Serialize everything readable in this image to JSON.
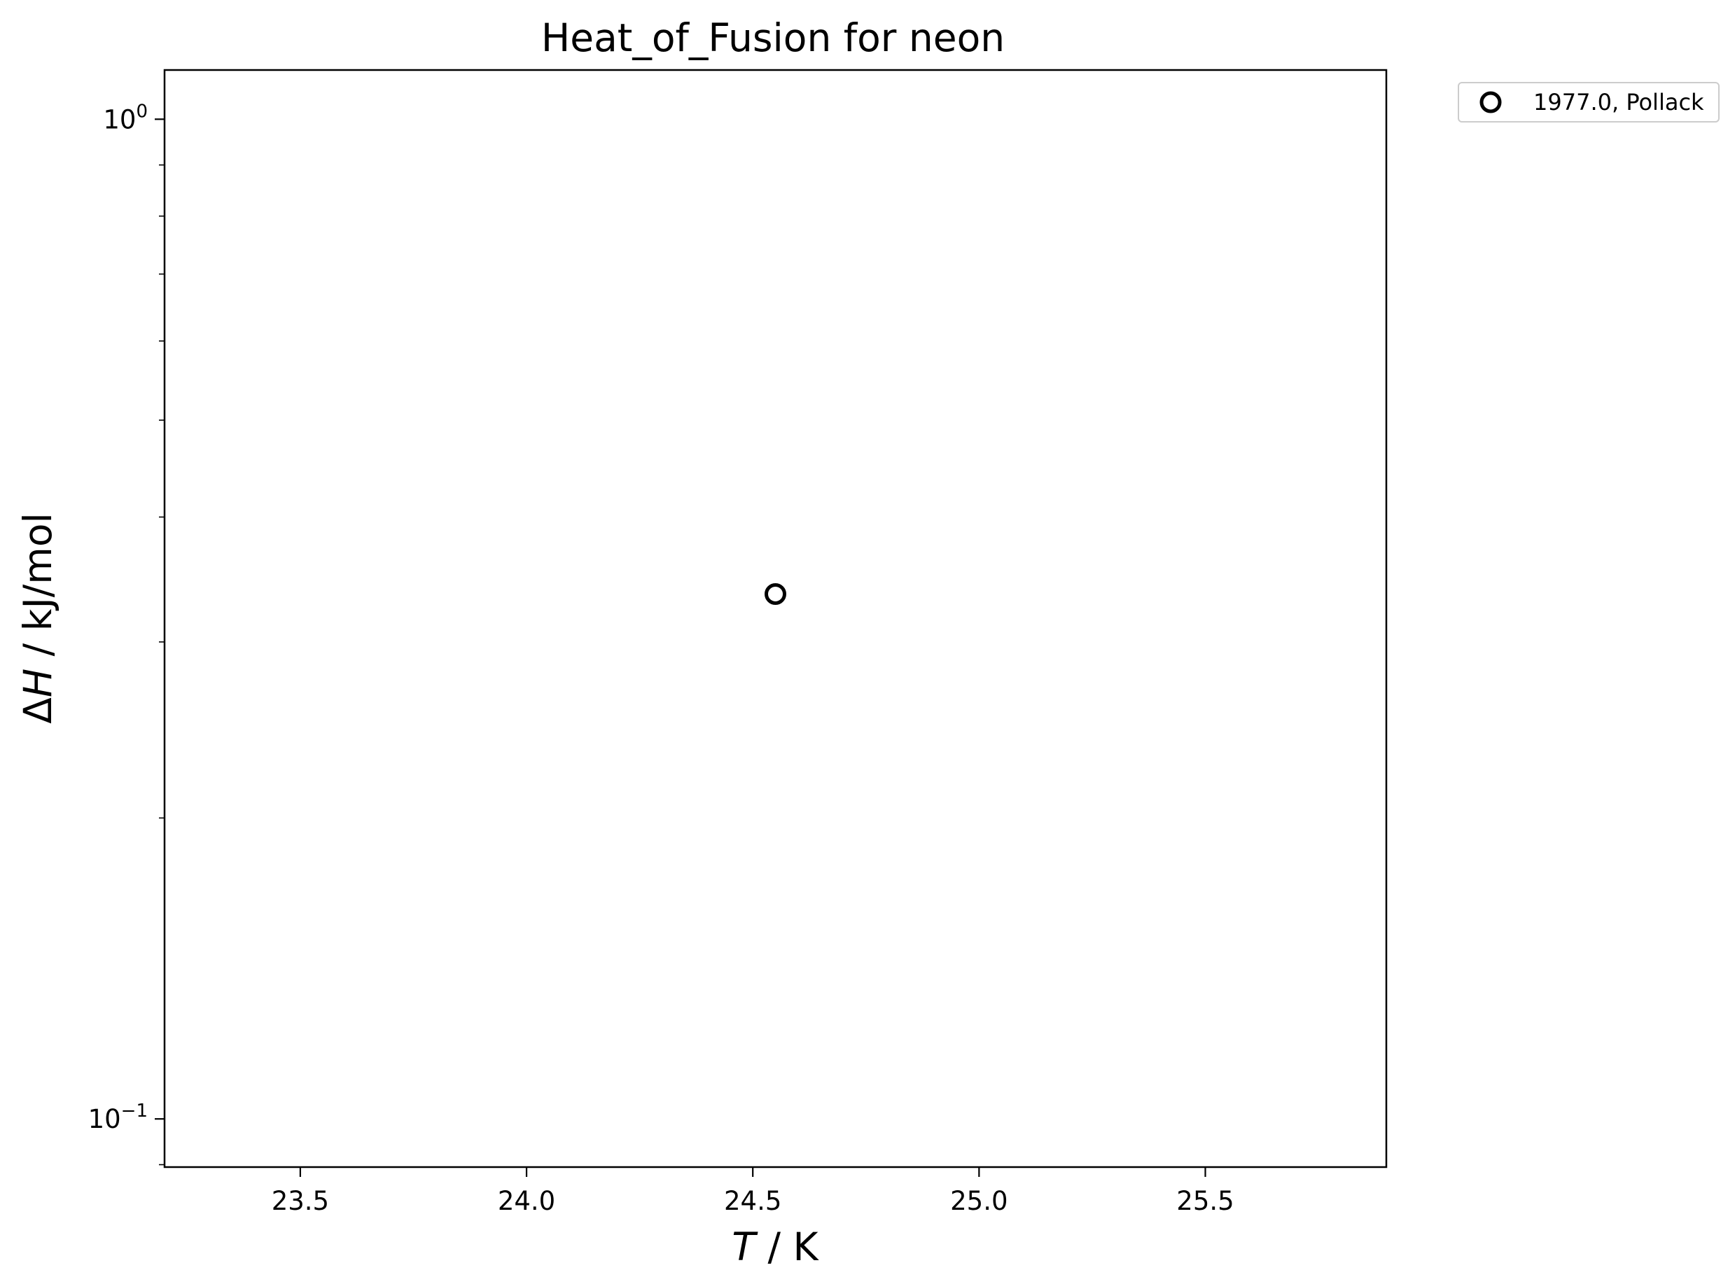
{
  "chart_data": {
    "type": "scatter",
    "title": "Heat_of_Fusion for neon",
    "xlabel": {
      "italic": "T",
      "rest": " / K"
    },
    "ylabel": {
      "prefix": "Δ",
      "italic": "H",
      "rest": " / kJ/mol"
    },
    "x_scale": "linear",
    "y_scale": "log",
    "xlim": [
      23.2,
      25.9
    ],
    "ylim": [
      0.0895,
      1.12
    ],
    "x_ticks": [
      23.5,
      24.0,
      24.5,
      25.0,
      25.5
    ],
    "x_tick_labels": [
      "23.5",
      "24.0",
      "24.5",
      "25.0",
      "25.5"
    ],
    "y_major_ticks": [
      {
        "value": 1.0,
        "base": "10",
        "exp": "0"
      },
      {
        "value": 0.1,
        "base": "10",
        "exp": "−1"
      }
    ],
    "y_minor_ticks": [
      0.09,
      0.2,
      0.3,
      0.4,
      0.5,
      0.6,
      0.7,
      0.8,
      0.9
    ],
    "grid": false,
    "legend_position": "outside-top-right",
    "series": [
      {
        "name": "1977.0, Pollack",
        "marker": "open-circle",
        "color": "#000000",
        "points": [
          {
            "x": 24.55,
            "y": 0.335
          }
        ]
      }
    ]
  }
}
